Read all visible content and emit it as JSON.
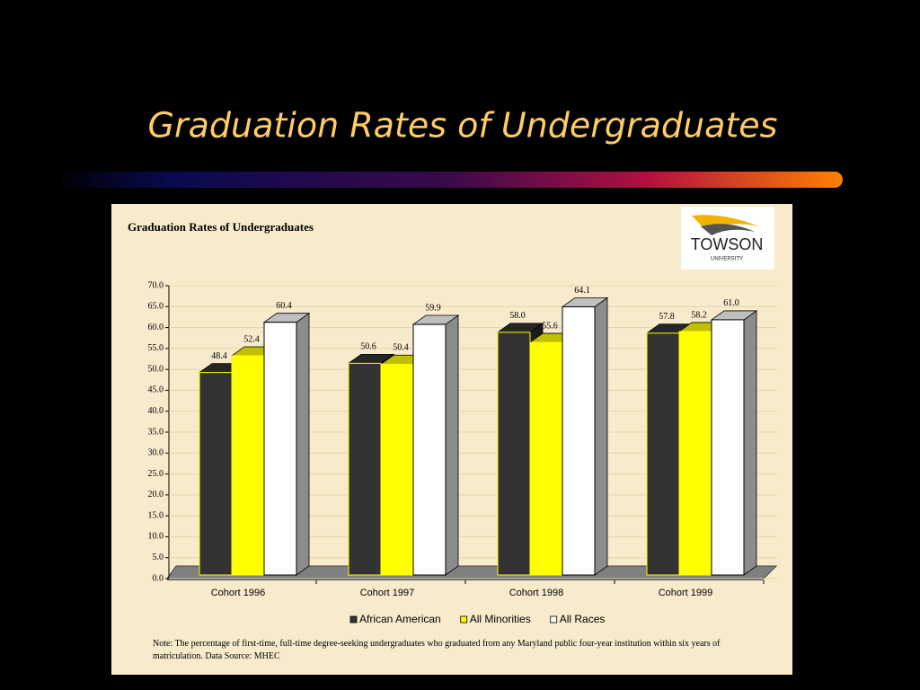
{
  "slide_title": "Graduation Rates of Undergraduates",
  "logo": {
    "name": "TOWSON",
    "subtitle": "UNIVERSITY"
  },
  "chart_data": {
    "type": "bar",
    "title": "Graduation Rates of Undergraduates",
    "categories": [
      "Cohort 1996",
      "Cohort 1997",
      "Cohort 1998",
      "Cohort 1999"
    ],
    "series": [
      {
        "name": "African American",
        "color": "#333333",
        "values": [
          48.4,
          50.6,
          58.0,
          57.8
        ],
        "value_labels": [
          "48.4",
          "50.6",
          "58.0",
          "57.8"
        ]
      },
      {
        "name": "All Minorities",
        "color": "#ffff00",
        "values": [
          52.4,
          50.4,
          55.6,
          58.2
        ],
        "value_labels": [
          "52.4",
          "50.4",
          "55.6",
          "58.2"
        ]
      },
      {
        "name": "All Races",
        "color": "#ffffff",
        "values": [
          60.4,
          59.9,
          64.1,
          61.0
        ],
        "value_labels": [
          "60.4",
          "59.9",
          "64.1",
          "61.0"
        ]
      }
    ],
    "ylim": [
      0,
      70
    ],
    "yticks": [
      {
        "value": 0,
        "label": "0.0"
      },
      {
        "value": 5,
        "label": "5.0"
      },
      {
        "value": 10,
        "label": "10.0"
      },
      {
        "value": 15,
        "label": "15.0"
      },
      {
        "value": 20,
        "label": "20.0"
      },
      {
        "value": 25,
        "label": "25.0"
      },
      {
        "value": 30,
        "label": "30.0"
      },
      {
        "value": 35,
        "label": "35.0"
      },
      {
        "value": 40,
        "label": "40.0"
      },
      {
        "value": 45,
        "label": "45.0"
      },
      {
        "value": 50,
        "label": "50.0"
      },
      {
        "value": 55,
        "label": "55.0"
      },
      {
        "value": 60,
        "label": "60.0"
      },
      {
        "value": 65,
        "label": "65.0"
      },
      {
        "value": 70,
        "label": "70.0"
      }
    ],
    "grid": true,
    "note": "Note:  The percentage of first-time, full-time degree-seeking undergraduates who graduated from any Maryland public four-year institution within six years of matriculation.  Data Source:  MHEC"
  }
}
